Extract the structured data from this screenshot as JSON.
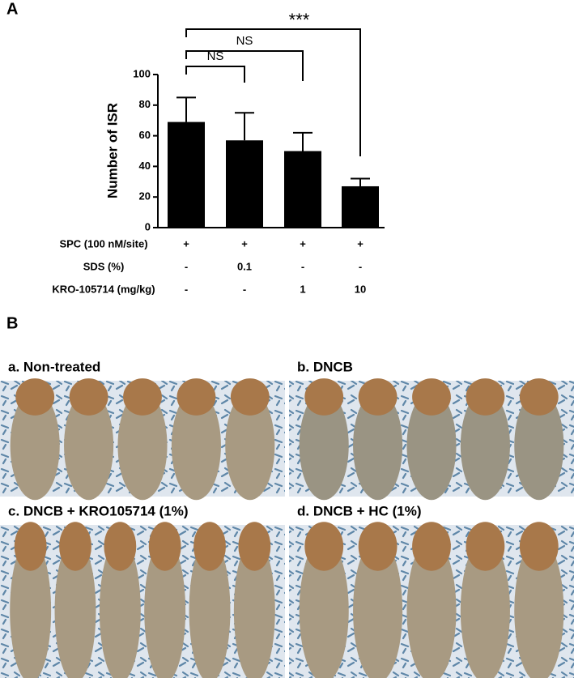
{
  "chart_data": {
    "type": "bar",
    "panel_label": "A",
    "ylabel": "Number of ISR",
    "categories": [
      null,
      null,
      null,
      null
    ],
    "values": [
      69,
      57,
      50,
      27
    ],
    "errors": [
      16,
      18,
      12,
      5
    ],
    "color": "#000000",
    "ylim": [
      0,
      100
    ],
    "yticks": [
      0,
      20,
      40,
      60,
      80,
      100
    ],
    "conditions": [
      {
        "label": "SPC (100 nM/site)",
        "values": [
          "+",
          "+",
          "+",
          "+"
        ]
      },
      {
        "label": "SDS (%)",
        "values": [
          "-",
          "0.1",
          "-",
          "-"
        ]
      },
      {
        "label": "KRO-105714 (mg/kg)",
        "values": [
          "-",
          "-",
          "1",
          "10"
        ]
      }
    ],
    "significance": [
      "NS",
      "NS",
      "***"
    ]
  },
  "photos": {
    "panel_label": "B",
    "panels": [
      {
        "caption": "a. Non-treated"
      },
      {
        "caption": "b. DNCB"
      },
      {
        "caption": "c. DNCB + KRO105714 (1%)"
      },
      {
        "caption": "d. DNCB + HC (1%)"
      }
    ]
  }
}
